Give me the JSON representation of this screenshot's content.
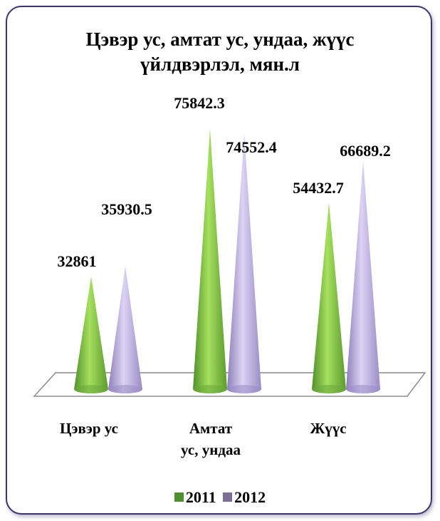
{
  "colors": {
    "frame": "#3d3470",
    "series_2011": "#7dc242",
    "series_2012": "#a99bd1",
    "legend_2011": "#4f8f2f",
    "legend_2012": "#7b6f95"
  },
  "chart_data": {
    "type": "bar",
    "subtype": "cone-3d",
    "title": [
      "Цэвэр ус, амтат ус, ундаа, жүүс",
      "үйлдвэрлэл, мян.л"
    ],
    "categories": [
      [
        "Цэвэр ус"
      ],
      [
        "Амтат",
        "ус, ундаа"
      ],
      [
        "Жүүс"
      ]
    ],
    "series": [
      {
        "name": "2011",
        "values": [
          32861,
          75842.3,
          54432.7
        ],
        "labels": [
          "32861",
          "75842.3",
          "54432.7"
        ]
      },
      {
        "name": "2012",
        "values": [
          35930.5,
          74552.4,
          66689.2
        ],
        "labels": [
          "35930.5",
          "74552.4",
          "66689.2"
        ]
      }
    ],
    "ylim": [
      0,
      80000
    ],
    "legend_position": "bottom",
    "grid": false
  }
}
